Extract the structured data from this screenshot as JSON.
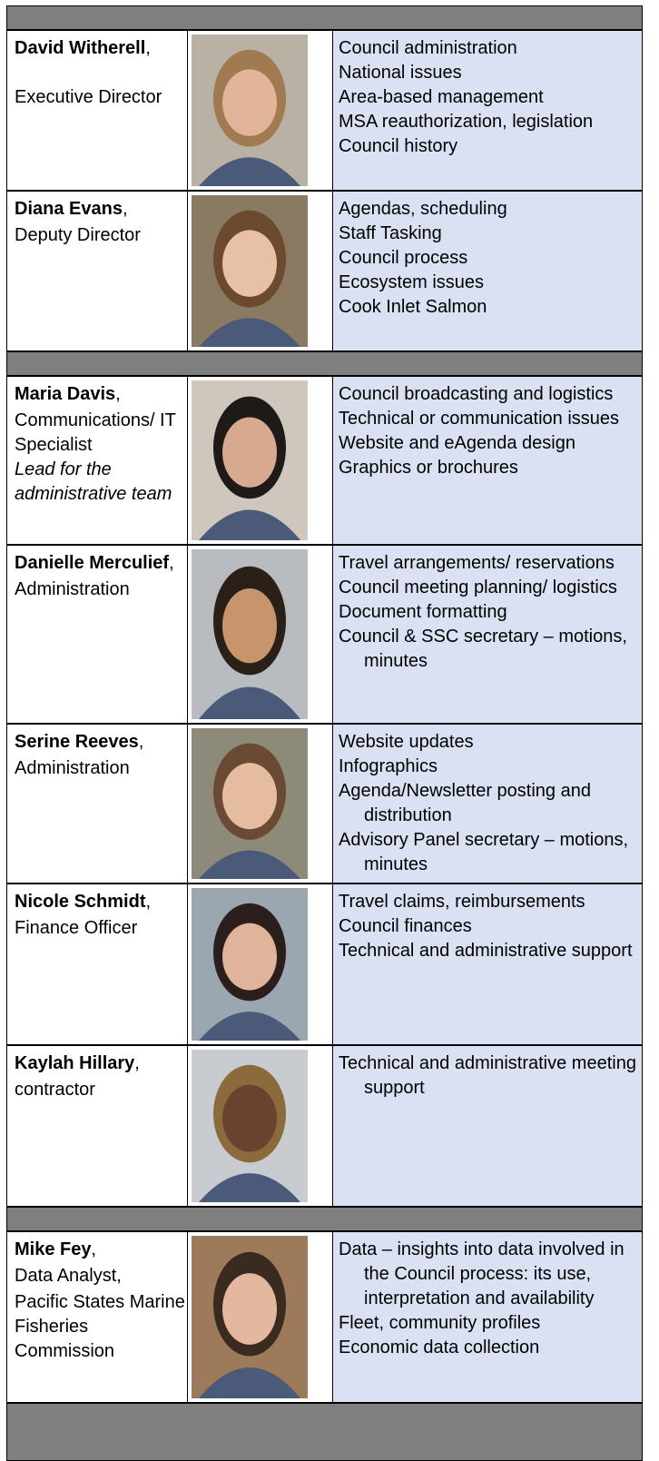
{
  "staff": [
    {
      "name": "David Witherell",
      "comma": ",",
      "roles": [
        "Executive Director"
      ],
      "duties": [
        "Council administration",
        "National issues",
        "Area-based management",
        "MSA reauthorization, legislation",
        "Council history"
      ]
    },
    {
      "name": "Diana Evans",
      "comma": ",",
      "roles": [
        "Deputy Director"
      ],
      "duties": [
        "Agendas, scheduling",
        "Staff Tasking",
        "Council process",
        "Ecosystem issues",
        "Cook Inlet Salmon"
      ]
    },
    {
      "name": "Maria Davis",
      "comma": ",",
      "roles": [
        "Communications/ IT Specialist"
      ],
      "note": "Lead for the administrative team",
      "duties": [
        "Council broadcasting and logistics",
        "Technical or communication issues",
        "Website and eAgenda design",
        "Graphics or brochures"
      ]
    },
    {
      "name": "Danielle Merculief",
      "comma": ",",
      "roles": [
        "Administration"
      ],
      "duties": [
        "Travel arrangements/ reservations",
        "Council meeting planning/ logistics",
        "Document formatting",
        "Council & SSC secretary – motions, minutes"
      ]
    },
    {
      "name": "Serine Reeves",
      "comma": ",",
      "roles": [
        "Administration"
      ],
      "duties": [
        "Website updates",
        "Infographics",
        "Agenda/Newsletter posting and distribution",
        "Advisory Panel secretary – motions, minutes"
      ]
    },
    {
      "name": "Nicole Schmidt",
      "comma": ",",
      "roles": [
        "Finance Officer"
      ],
      "duties": [
        "Travel claims, reimbursements",
        "Council finances",
        "Technical and administrative support"
      ]
    },
    {
      "name": "Kaylah Hillary",
      "comma": ",",
      "roles": [
        "contractor"
      ],
      "duties": [
        "Technical and administrative meeting support"
      ]
    },
    {
      "name": "Mike Fey",
      "comma": ",",
      "roles": [
        "Data Analyst,",
        "Pacific States Marine Fisheries Commission"
      ],
      "duties": [
        "Data – insights into data involved in the Council process: its use, interpretation and availability",
        "Fleet, community profiles",
        "Economic data collection"
      ]
    }
  ]
}
